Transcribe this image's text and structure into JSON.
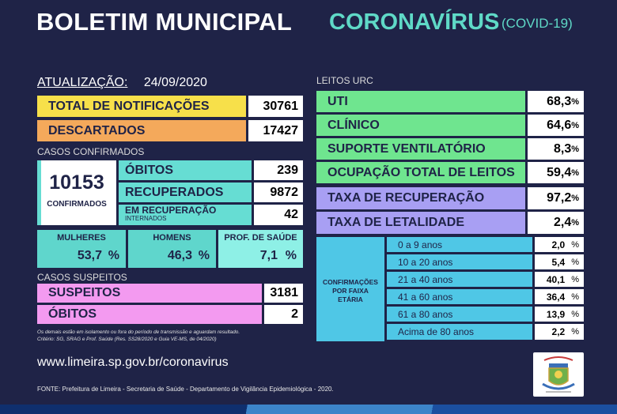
{
  "header": {
    "title": "BOLETIM MUNICIPAL",
    "corona": "CORONAVÍRUS",
    "covid": "(COVID-19)"
  },
  "update": {
    "label": "ATUALIZAÇÃO:",
    "date": "24/09/2020"
  },
  "totals": [
    {
      "label": "TOTAL DE NOTIFICAÇÕES",
      "value": "30761",
      "color": "#f7e04a"
    },
    {
      "label": "DESCARTADOS",
      "value": "17427",
      "color": "#f4a95b"
    }
  ],
  "confirmed": {
    "section": "CASOS CONFIRMADOS",
    "total": "10153",
    "total_label": "CONFIRMADOS",
    "rows": [
      {
        "label": "ÓBITOS",
        "value": "239"
      },
      {
        "label": "RECUPERADOS",
        "value": "9872"
      },
      {
        "label": "EM RECUPERAÇÃO",
        "sub": "INTERNADOS",
        "value": "42"
      }
    ],
    "breakdown": [
      {
        "label": "MULHERES",
        "value": "53,7",
        "unit": "%"
      },
      {
        "label": "HOMENS",
        "value": "46,3",
        "unit": "%"
      },
      {
        "label": "PROF. DE SAÚDE",
        "value": "7,1",
        "unit": "%"
      }
    ]
  },
  "suspects": {
    "section": "CASOS SUSPEITOS",
    "rows": [
      {
        "label": "SUSPEITOS",
        "value": "3181"
      },
      {
        "label": "ÓBITOS",
        "value": "2"
      }
    ]
  },
  "note": {
    "line1": "Os demais estão em isolamento ou fora do período de transmissão e aguardam resultado.",
    "line2": "Critério: SG, SRAG e Prof. Saúde (Res. SS28/2020 e Guia VE-MS, de 04/2020)"
  },
  "url": "www.limeira.sp.gov.br/coronavirus",
  "source": "FONTE: Prefeitura de Limeira - Secretaria de Saúde - Departamento de Vigilância Epidemiológica - 2020.",
  "beds": {
    "section": "LEITOS URC",
    "rows": [
      {
        "label": "UTI",
        "value": "68,3",
        "unit": "%"
      },
      {
        "label": "CLÍNICO",
        "value": "64,6",
        "unit": "%"
      },
      {
        "label": "SUPORTE VENTILATÓRIO",
        "value": "8,3",
        "unit": "%"
      },
      {
        "label": "OCUPAÇÃO TOTAL DE LEITOS",
        "value": "59,4",
        "unit": "%"
      }
    ]
  },
  "rates": [
    {
      "label": "TAXA DE RECUPERAÇÃO",
      "value": "97,2",
      "unit": "%"
    },
    {
      "label": "TAXA DE LETALIDADE",
      "value": "2,4",
      "unit": "%"
    }
  ],
  "age": {
    "label_l1": "CONFIRMAÇÕES",
    "label_l2": "POR FAIXA",
    "label_l3": "ETÁRIA",
    "rows": [
      {
        "label": "0 a 9 anos",
        "value": "2,0",
        "unit": "%"
      },
      {
        "label": "10 a 20 anos",
        "value": "5,4",
        "unit": "%"
      },
      {
        "label": "21 a 40 anos",
        "value": "40,1",
        "unit": "%"
      },
      {
        "label": "41 a 60 anos",
        "value": "36,4",
        "unit": "%"
      },
      {
        "label": "61 a 80 anos",
        "value": "13,9",
        "unit": "%"
      },
      {
        "label": "Acima de 80 anos",
        "value": "2,2",
        "unit": "%"
      }
    ]
  },
  "colors": {
    "background": "#1f2347",
    "accent": "#5fd9c7",
    "green": "#6fe58f",
    "purple": "#a89ff3",
    "pink": "#f39af0",
    "blue": "#4fc7e6"
  },
  "seal_icon": "city-coat-of-arms"
}
